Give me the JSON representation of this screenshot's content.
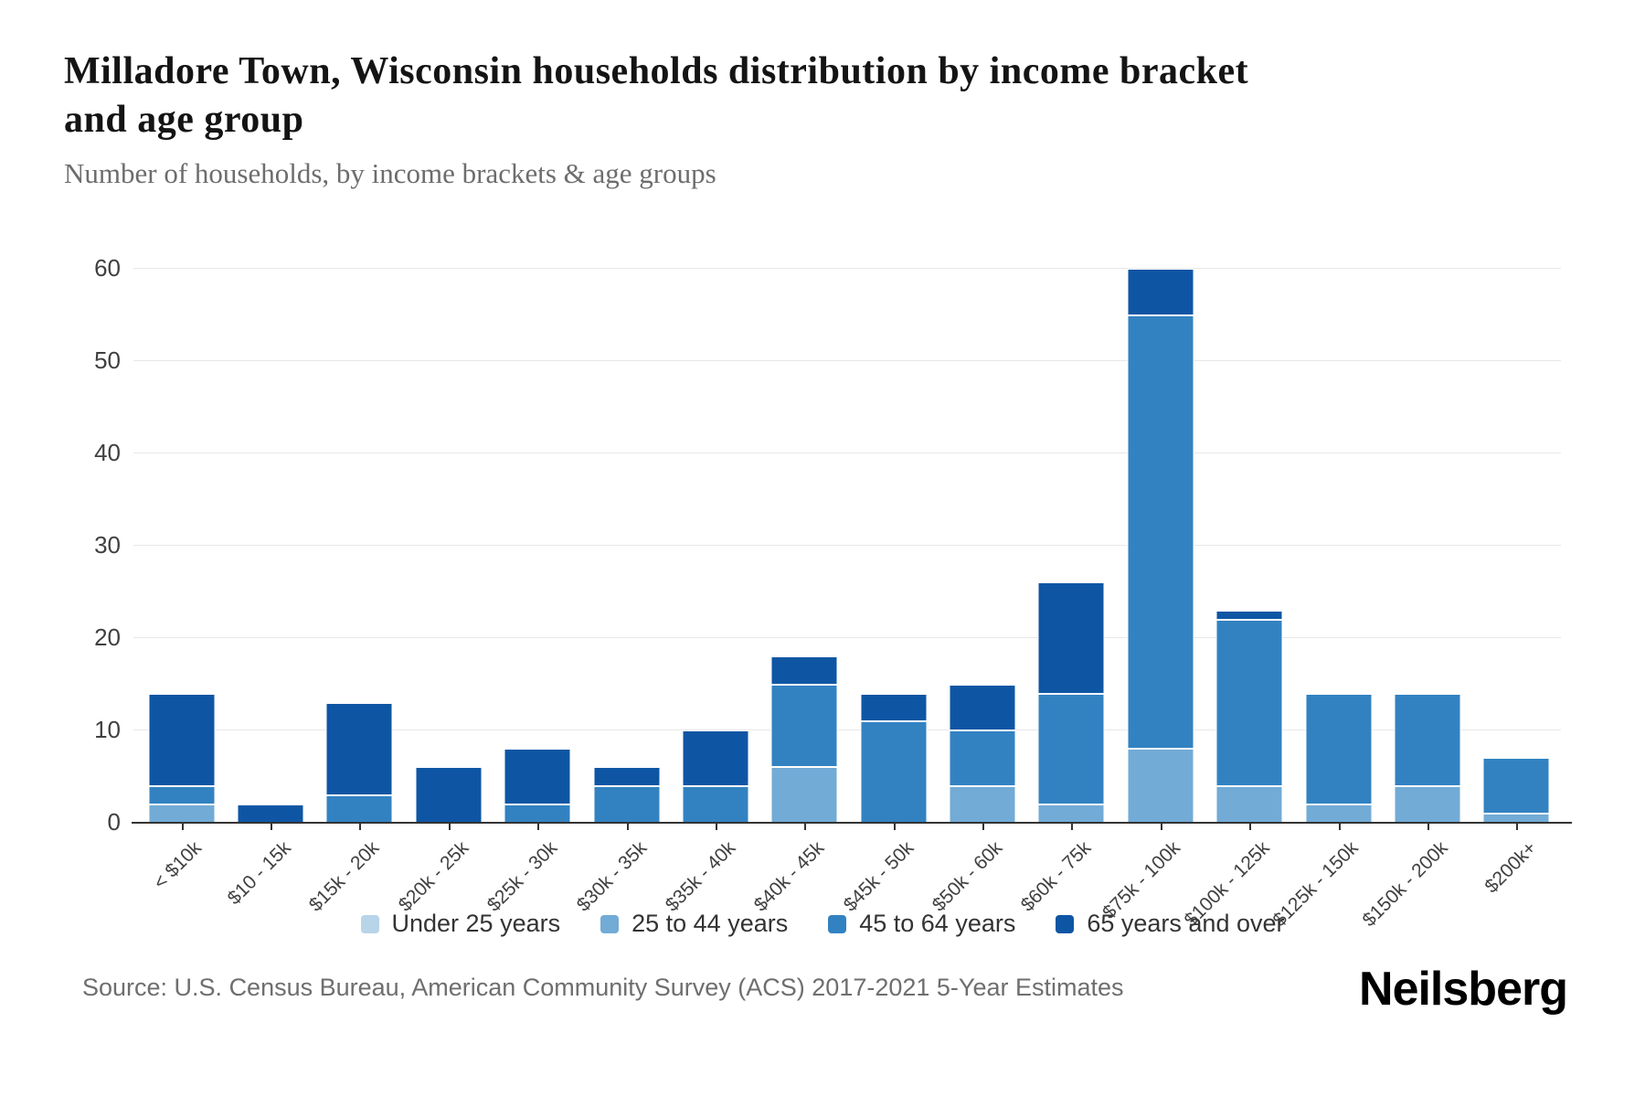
{
  "header": {
    "title": "Milladore Town, Wisconsin households distribution by income bracket and age group",
    "subtitle": "Number of households, by income brackets & age groups"
  },
  "source_line": "Source: U.S. Census Bureau, American Community Survey (ACS) 2017-2021 5-Year Estimates",
  "brand": "Neilsberg",
  "colors": {
    "gridline": "#e7e7e7",
    "axis": "#333333",
    "tick_label": "#404040",
    "title_text": "#141414",
    "subtitle_text": "#6d6d6d"
  },
  "chart_data": {
    "type": "bar",
    "stacked": true,
    "title": "Milladore Town, Wisconsin households distribution by income bracket and age group",
    "subtitle": "Number of households, by income brackets & age groups",
    "xlabel": "",
    "ylabel": "",
    "ylim": [
      0,
      60
    ],
    "yticks": [
      0,
      10,
      20,
      30,
      40,
      50,
      60
    ],
    "grid": true,
    "legend_position": "bottom",
    "categories": [
      "< $10k",
      "$10 - 15k",
      "$15k - 20k",
      "$20k - 25k",
      "$25k - 30k",
      "$30k - 35k",
      "$35k - 40k",
      "$40k - 45k",
      "$45k - 50k",
      "$50k - 60k",
      "$60k - 75k",
      "$75k - 100k",
      "$100k - 125k",
      "$125k - 150k",
      "$150k - 200k",
      "$200k+"
    ],
    "series": [
      {
        "name": "Under 25 years",
        "color": "#b8d4e9",
        "values": [
          0,
          0,
          0,
          0,
          0,
          0,
          0,
          0,
          0,
          0,
          0,
          0,
          0,
          0,
          0,
          0
        ]
      },
      {
        "name": "25 to 44 years",
        "color": "#72abd6",
        "values": [
          2,
          0,
          0,
          0,
          0,
          0,
          0,
          6,
          0,
          4,
          2,
          8,
          4,
          2,
          4,
          1
        ]
      },
      {
        "name": "45 to 64 years",
        "color": "#3282c2",
        "values": [
          2,
          0,
          3,
          0,
          2,
          4,
          4,
          9,
          11,
          6,
          12,
          47,
          18,
          12,
          10,
          6
        ]
      },
      {
        "name": "65 years and over",
        "color": "#0e56a4",
        "values": [
          10,
          2,
          10,
          6,
          6,
          2,
          6,
          3,
          3,
          5,
          12,
          5,
          1,
          0,
          0,
          0
        ]
      }
    ],
    "totals": [
      14,
      2,
      13,
      6,
      8,
      6,
      10,
      18,
      14,
      15,
      26,
      60,
      23,
      14,
      14,
      7
    ]
  }
}
